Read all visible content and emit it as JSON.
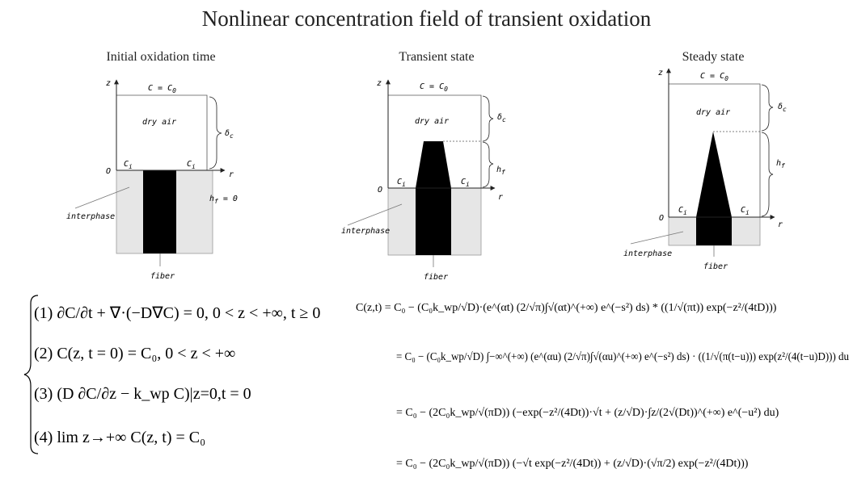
{
  "title": "Nonlinear concentration field of transient oxidation",
  "panels": [
    {
      "heading": "Initial oxidation time",
      "z": "z",
      "r": "r",
      "origin": "O",
      "top_bc": "C = C",
      "top_bc_sub": "0",
      "dry_air": "dry air",
      "ci_left": "C",
      "ci_right": "C",
      "ci_sub": "i",
      "delta": "δ",
      "delta_sub": "c",
      "hf": "h",
      "hf_sub": "f",
      "hf_value": " = 0",
      "interphase": "interphase",
      "fiber": "fiber"
    },
    {
      "heading": "Transient state",
      "z": "z",
      "r": "r",
      "origin": "O",
      "top_bc": "C = C",
      "top_bc_sub": "0",
      "dry_air": "dry air",
      "ci_left": "C",
      "ci_right": "C",
      "ci_sub": "i",
      "delta": "δ",
      "delta_sub": "c",
      "hf": "h",
      "hf_sub": "f",
      "interphase": "interphase",
      "fiber": "fiber"
    },
    {
      "heading": "Steady state",
      "z": "z",
      "r": "r",
      "origin": "O",
      "top_bc": "C = C",
      "top_bc_sub": "0",
      "dry_air": "dry air",
      "ci_left": "C",
      "ci_right": "C",
      "ci_sub": "i",
      "delta": "δ",
      "delta_sub": "c",
      "hf": "h",
      "hf_sub": "f",
      "interphase": "interphase",
      "fiber": "fiber"
    }
  ],
  "equations": {
    "system": [
      "(1)  ∂C/∂t + ∇·(−D∇C) = 0,  0 < z < +∞, t ≥ 0",
      "(2)  C(z, t = 0) = C₀,  0 < z < +∞",
      "(3)  (D ∂C/∂z − k_wp C)|z=0,t = 0",
      "(4)  lim z→+∞ C(z, t) = C₀"
    ],
    "solution": [
      "C(z,t) = C₀ − (C₀k_wp/√D)·(e^(αt) (2/√π)∫√(αt)^(+∞) e^(−s²) ds) * ((1/√(πt)) exp(−z²/(4tD)))",
      "= C₀ − (C₀k_wp/√D) ∫−∞^(+∞) (e^(αu) (2/√π)∫√(αu)^(+∞) e^(−s²) ds) · ((1/√(π(t−u))) exp(z²/(4(t−u)D))) du",
      "= C₀ − (2C₀k_wp/√(πD)) (−exp(−z²/(4Dt))·√t + (z/√D)·∫z/(2√(Dt))^(+∞) e^(−u²) du)",
      "= C₀ − (2C₀k_wp/√(πD)) (−√t exp(−z²/(4Dt)) + (z/√D)·(√π/2) exp(−z²/(4Dt)))"
    ]
  }
}
